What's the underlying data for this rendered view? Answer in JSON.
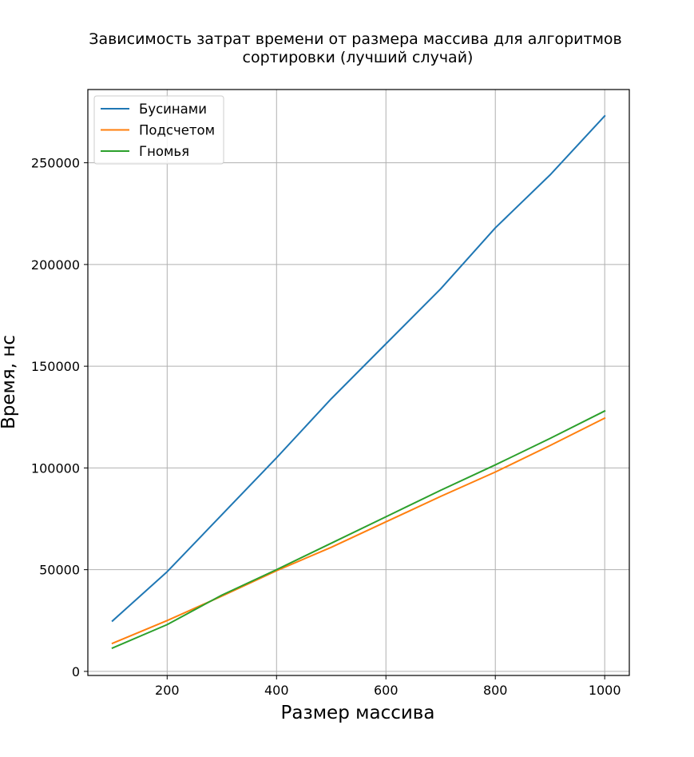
{
  "chart_data": {
    "type": "line",
    "title_lines": [
      "Зависимость затрат времени от размера массива для алгоритмов",
      "сортировки (лучший случай)"
    ],
    "xlabel": "Размер массива",
    "ylabel": "Время, нс",
    "xlim": [
      55,
      1045
    ],
    "ylim": [
      -2000,
      286000
    ],
    "xticks": [
      200,
      400,
      600,
      800,
      1000
    ],
    "yticks": [
      0,
      50000,
      100000,
      150000,
      200000,
      250000
    ],
    "grid": true,
    "legend_position": "top-left",
    "x": [
      100,
      200,
      300,
      400,
      500,
      600,
      700,
      800,
      900,
      1000
    ],
    "series": [
      {
        "name": "Бусинами",
        "color": "#1f77b4",
        "values": [
          24800,
          49000,
          77000,
          105000,
          134000,
          161000,
          188000,
          218000,
          244000,
          273000
        ]
      },
      {
        "name": "Подсчетом",
        "color": "#ff7f0e",
        "values": [
          13800,
          25000,
          37000,
          49500,
          61000,
          73500,
          86000,
          98000,
          111000,
          124500
        ]
      },
      {
        "name": "Гномья",
        "color": "#2ca02c",
        "values": [
          11500,
          23000,
          37500,
          50000,
          63000,
          76000,
          89000,
          101500,
          114500,
          128000
        ]
      }
    ]
  }
}
